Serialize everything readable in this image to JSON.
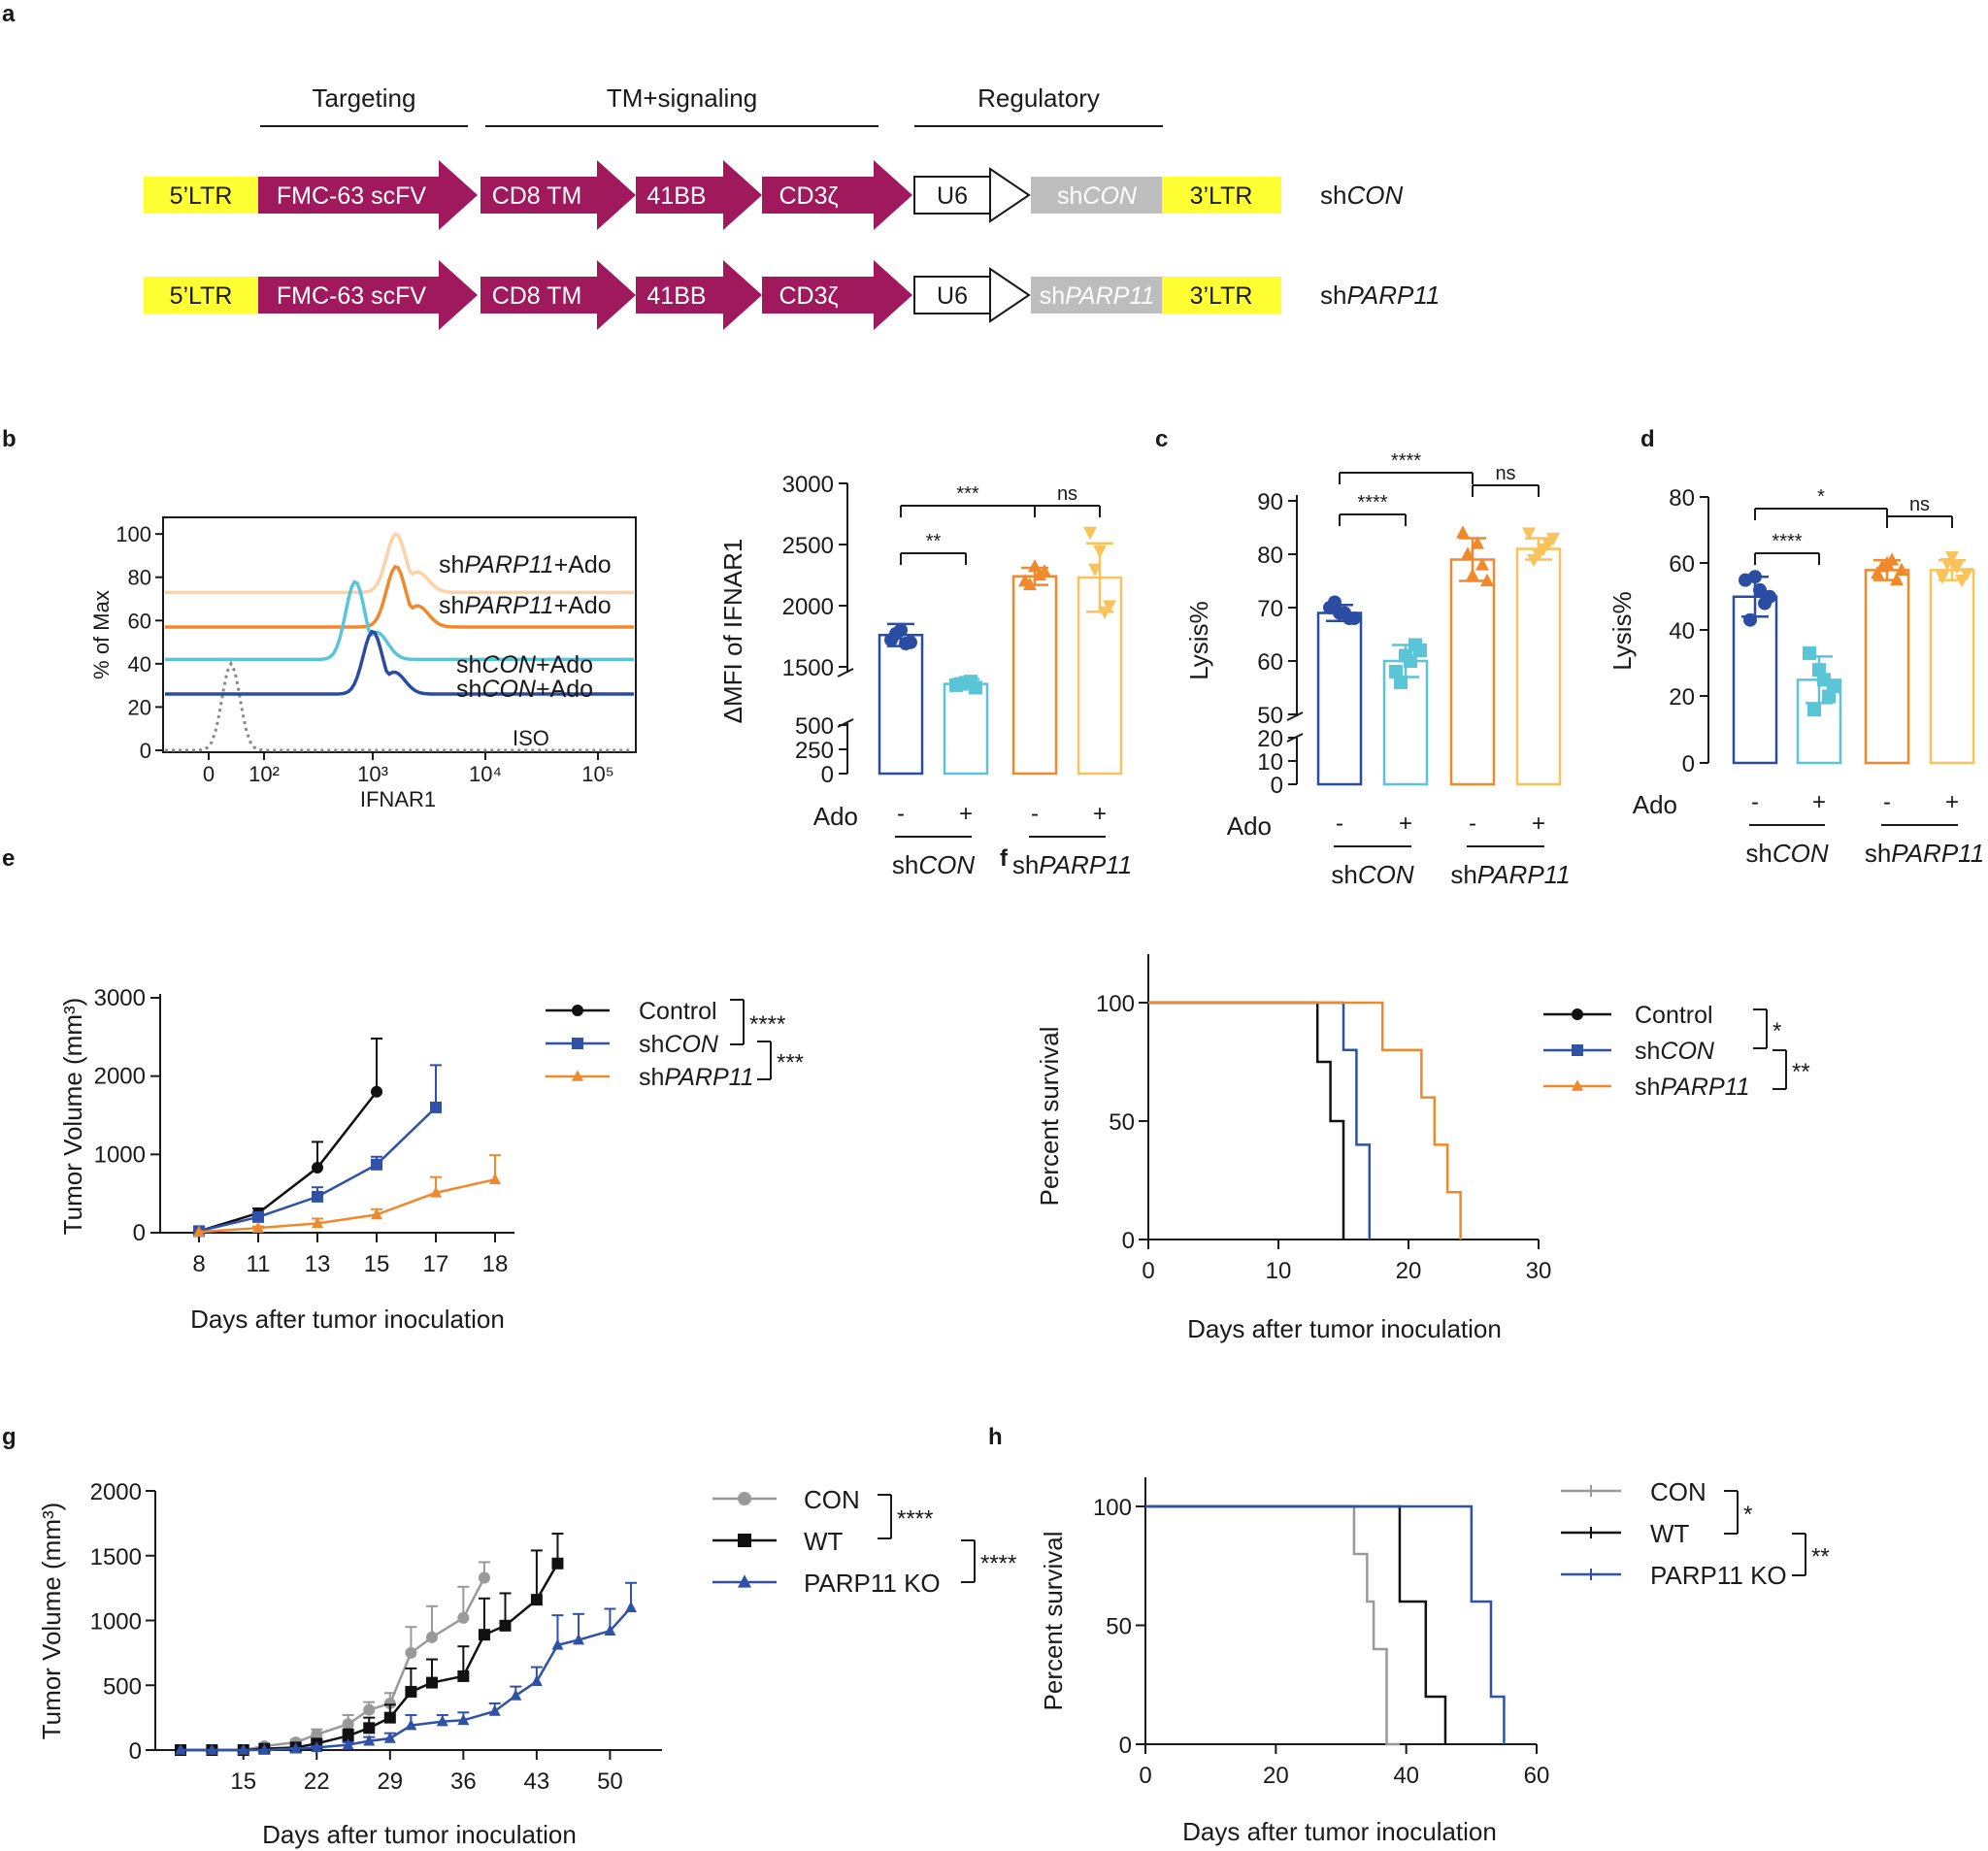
{
  "colors": {
    "magenta": "#a0195d",
    "yellow": "#ffff33",
    "gray": "#bdbdbd",
    "navy": "#2b4ca3",
    "cyan": "#5bc5d8",
    "orange": "#f0892c",
    "lightorange": "#f8c35a",
    "peach": "#fcd2a8",
    "black": "#111111",
    "gray2": "#999999",
    "blue": "#2f52a8"
  },
  "panels": {
    "a": "a",
    "b": "b",
    "c": "c",
    "d": "d",
    "e": "e",
    "f": "f",
    "g": "g",
    "h": "h"
  },
  "construct": {
    "headers": [
      "Targeting",
      "TM+signaling",
      "Regulatory"
    ],
    "rows": [
      {
        "ltr5": "5’LTR",
        "scfv": "FMC-63 scFV",
        "tm": "CD8 TM",
        "bb": "41BB",
        "cd3": "CD3ζ",
        "u6": "U6",
        "sh_pre": "sh",
        "sh_it": "CON",
        "ltr3": "3’LTR",
        "name_pre": "sh",
        "name_it": "CON"
      },
      {
        "ltr5": "5’LTR",
        "scfv": "FMC-63 scFV",
        "tm": "CD8 TM",
        "bb": "41BB",
        "cd3": "CD3ζ",
        "u6": "U6",
        "sh_pre": "sh",
        "sh_it": "PARP11",
        "ltr3": "3’LTR",
        "name_pre": "sh",
        "name_it": "PARP11"
      }
    ]
  },
  "chart_data": [
    {
      "id": "b_histogram",
      "type": "line",
      "ylabel": "% of Max",
      "xlabel": "IFNAR1",
      "yticks": [
        "0",
        "20",
        "40",
        "60",
        "80",
        "100"
      ],
      "xticks": [
        "0",
        "10²",
        "10³",
        "10⁴",
        "10⁵"
      ],
      "series": [
        {
          "name": "shPARP11+Ado",
          "pre": "sh",
          "it": "PARP11",
          "post": "+Ado",
          "color": "#fcd2a8",
          "baseline": 73,
          "peak_log": 3.1,
          "peak": 100
        },
        {
          "name": "shPARP11+Ado",
          "pre": "sh",
          "it": "PARP11",
          "post": "+Ado",
          "color": "#f0892c",
          "baseline": 57,
          "peak_log": 3.1,
          "peak": 85
        },
        {
          "name": "shCON+Ado",
          "pre": "sh",
          "it": "CON",
          "post": "+Ado",
          "color": "#5bc5d8",
          "baseline": 42,
          "peak_log": 2.85,
          "peak": 78
        },
        {
          "name": "shCON+Ado",
          "pre": "sh",
          "it": "CON",
          "post": "+Ado",
          "color": "#2b4ca3",
          "baseline": 26,
          "peak_log": 2.95,
          "peak": 55
        }
      ],
      "iso_label": "ISO"
    },
    {
      "id": "b_bar",
      "type": "bar",
      "ylabel": "ΔMFI of IFNAR1",
      "yticks_low": [
        "0",
        "250",
        "500"
      ],
      "yticks_high": [
        "1500",
        "2000",
        "2500",
        "3000"
      ],
      "ylim_low": [
        0,
        500
      ],
      "ylim_high": [
        1250,
        3000
      ],
      "categories": [
        "shCON -",
        "shCON +",
        "shPARP11 -",
        "shPARP11 +"
      ],
      "values": [
        1760,
        1360,
        2240,
        2230
      ],
      "errors": [
        90,
        40,
        70,
        280
      ],
      "points": [
        [
          1720,
          1800,
          1700,
          1770,
          1690
        ],
        [
          1350,
          1370,
          1330,
          1360,
          1380
        ],
        [
          2200,
          2320,
          2280,
          2170,
          2250
        ],
        [
          2600,
          2450,
          2000,
          2300,
          1950
        ]
      ],
      "colors": [
        "#2b4ca3",
        "#5bc5d8",
        "#f0892c",
        "#f8c35a"
      ],
      "sig": [
        "**",
        "***",
        "ns"
      ]
    },
    {
      "id": "c_bar",
      "type": "bar",
      "panel": "c",
      "ylabel": "Lysis%",
      "yticks_low": [
        "0",
        "10",
        "20"
      ],
      "yticks_high": [
        "50",
        "60",
        "70",
        "80",
        "90"
      ],
      "categories": [
        "shCON -",
        "shCON +",
        "shPARP11 -",
        "shPARP11 +"
      ],
      "values": [
        69,
        60,
        79,
        81
      ],
      "errors": [
        1.5,
        3,
        4,
        2
      ],
      "points": [
        [
          70,
          69,
          68,
          71,
          69,
          68
        ],
        [
          58,
          61,
          63,
          56,
          60,
          62
        ],
        [
          84,
          76,
          78,
          80,
          82,
          75
        ],
        [
          84,
          80,
          82,
          79,
          81,
          83
        ]
      ],
      "colors": [
        "#2b4ca3",
        "#5bc5d8",
        "#f0892c",
        "#f8c35a"
      ],
      "sig": [
        "****",
        "****",
        "ns"
      ]
    },
    {
      "id": "d_bar",
      "type": "bar",
      "panel": "d",
      "ylabel": "Lysis%",
      "yticks": [
        "0",
        "20",
        "40",
        "60",
        "80"
      ],
      "ylim": [
        0,
        80
      ],
      "categories": [
        "shCON -",
        "shCON +",
        "shPARP11 -",
        "shPARP11 +"
      ],
      "values": [
        50,
        25,
        58,
        58
      ],
      "errors": [
        6,
        7,
        3,
        3
      ],
      "points": [
        [
          55,
          56,
          48,
          43,
          52,
          50
        ],
        [
          33,
          28,
          20,
          16,
          25,
          23
        ],
        [
          57,
          60,
          55,
          59,
          61,
          58
        ],
        [
          56,
          62,
          55,
          60,
          59,
          57
        ]
      ],
      "colors": [
        "#2b4ca3",
        "#5bc5d8",
        "#f0892c",
        "#f8c35a"
      ],
      "sig": [
        "****",
        "*",
        "ns"
      ]
    },
    {
      "id": "e_growth",
      "type": "line",
      "panel": "e",
      "ylabel": "Tumor Volume (mm³)",
      "xlabel": "Days after tumor inoculation",
      "x_categories": [
        "8",
        "11",
        "13",
        "15",
        "17",
        "18"
      ],
      "ylim": [
        0,
        3000
      ],
      "yticks": [
        "0",
        "1000",
        "2000",
        "3000"
      ],
      "series": [
        {
          "name": "Control",
          "color": "#111111",
          "marker": "circle",
          "values": [
            20,
            250,
            830,
            1800
          ],
          "errors": [
            0,
            60,
            330,
            680
          ]
        },
        {
          "name": "shCON",
          "pre": "sh",
          "it": "CON",
          "color": "#2f52a8",
          "marker": "square",
          "values": [
            20,
            200,
            460,
            870,
            1600
          ],
          "errors": [
            0,
            40,
            120,
            100,
            540
          ]
        },
        {
          "name": "shPARP11",
          "pre": "sh",
          "it": "PARP11",
          "color": "#f0892c",
          "marker": "triangle",
          "values": [
            10,
            60,
            120,
            230,
            510,
            680
          ],
          "errors": [
            0,
            20,
            60,
            70,
            200,
            310
          ]
        }
      ],
      "sig": [
        "****",
        "***"
      ]
    },
    {
      "id": "f_survival",
      "type": "line",
      "panel": "f",
      "ylabel": "Percent survival",
      "xlabel": "Days after tumor inoculation",
      "xlim": [
        0,
        30
      ],
      "ylim": [
        0,
        100
      ],
      "xticks": [
        "0",
        "10",
        "20",
        "30"
      ],
      "yticks": [
        "0",
        "50",
        "100"
      ],
      "series": [
        {
          "name": "Control",
          "color": "#111111",
          "marker": "circle",
          "steps": [
            [
              0,
              100
            ],
            [
              13,
              100
            ],
            [
              13,
              75
            ],
            [
              14,
              75
            ],
            [
              14,
              50
            ],
            [
              15,
              50
            ],
            [
              15,
              0
            ]
          ]
        },
        {
          "name": "shCON",
          "pre": "sh",
          "it": "CON",
          "color": "#2f52a8",
          "marker": "square",
          "steps": [
            [
              0,
              100
            ],
            [
              15,
              100
            ],
            [
              15,
              80
            ],
            [
              16,
              80
            ],
            [
              16,
              40
            ],
            [
              17,
              40
            ],
            [
              17,
              0
            ]
          ]
        },
        {
          "name": "shPARP11",
          "pre": "sh",
          "it": "PARP11",
          "color": "#f0892c",
          "marker": "triangle",
          "steps": [
            [
              0,
              100
            ],
            [
              18,
              100
            ],
            [
              18,
              80
            ],
            [
              21,
              80
            ],
            [
              21,
              60
            ],
            [
              22,
              60
            ],
            [
              22,
              40
            ],
            [
              23,
              40
            ],
            [
              23,
              20
            ],
            [
              24,
              20
            ],
            [
              24,
              0
            ]
          ]
        }
      ],
      "sig": [
        "*",
        "**"
      ]
    },
    {
      "id": "g_growth",
      "type": "line",
      "panel": "g",
      "ylabel": "Tumor Volume (mm³)",
      "xlabel": "Days after tumor inoculation",
      "xlim": [
        6,
        54
      ],
      "ylim": [
        0,
        2000
      ],
      "xticks": [
        "15",
        "22",
        "29",
        "36",
        "43",
        "50"
      ],
      "yticks": [
        "0",
        "500",
        "1000",
        "1500",
        "2000"
      ],
      "series": [
        {
          "name": "CON",
          "color": "#999999",
          "marker": "circle",
          "x": [
            9,
            12,
            15,
            17,
            20,
            22,
            25,
            27,
            29,
            31,
            33,
            36,
            38
          ],
          "values": [
            0,
            0,
            0,
            30,
            60,
            120,
            200,
            310,
            360,
            750,
            870,
            1020,
            1330
          ],
          "errors": [
            0,
            0,
            0,
            10,
            20,
            40,
            70,
            60,
            80,
            200,
            240,
            240,
            120
          ]
        },
        {
          "name": "WT",
          "color": "#111111",
          "marker": "square",
          "x": [
            9,
            12,
            15,
            17,
            20,
            22,
            25,
            27,
            29,
            31,
            33,
            36,
            38,
            40,
            43,
            45
          ],
          "values": [
            0,
            0,
            0,
            10,
            20,
            50,
            110,
            170,
            250,
            450,
            520,
            570,
            890,
            960,
            1160,
            1440
          ],
          "errors": [
            0,
            0,
            0,
            5,
            10,
            30,
            50,
            80,
            100,
            180,
            180,
            230,
            280,
            250,
            380,
            230
          ]
        },
        {
          "name": "PARP11 KO",
          "color": "#2f52a8",
          "marker": "triangle",
          "x": [
            9,
            12,
            15,
            17,
            20,
            22,
            25,
            27,
            29,
            31,
            34,
            36,
            39,
            41,
            43,
            45,
            47,
            50,
            52
          ],
          "values": [
            0,
            0,
            0,
            0,
            10,
            20,
            40,
            70,
            90,
            190,
            220,
            230,
            300,
            420,
            530,
            810,
            850,
            920,
            1100
          ],
          "errors": [
            0,
            0,
            0,
            0,
            5,
            10,
            20,
            30,
            40,
            80,
            50,
            60,
            60,
            70,
            110,
            230,
            200,
            170,
            190
          ]
        }
      ],
      "sig": [
        "****",
        "****"
      ]
    },
    {
      "id": "h_survival",
      "type": "line",
      "panel": "h",
      "ylabel": "Percent survival",
      "xlabel": "Days after tumor inoculation",
      "xlim": [
        0,
        60
      ],
      "ylim": [
        0,
        100
      ],
      "xticks": [
        "0",
        "20",
        "40",
        "60"
      ],
      "yticks": [
        "0",
        "50",
        "100"
      ],
      "series": [
        {
          "name": "CON",
          "color": "#999999",
          "steps": [
            [
              0,
              100
            ],
            [
              32,
              100
            ],
            [
              32,
              80
            ],
            [
              34,
              80
            ],
            [
              34,
              60
            ],
            [
              35,
              60
            ],
            [
              35,
              40
            ],
            [
              37,
              40
            ],
            [
              37,
              0
            ],
            [
              39,
              0
            ]
          ]
        },
        {
          "name": "WT",
          "color": "#111111",
          "steps": [
            [
              0,
              100
            ],
            [
              39,
              100
            ],
            [
              39,
              60
            ],
            [
              43,
              60
            ],
            [
              43,
              20
            ],
            [
              46,
              20
            ],
            [
              46,
              0
            ]
          ]
        },
        {
          "name": "PARP11 KO",
          "color": "#2f52a8",
          "steps": [
            [
              0,
              100
            ],
            [
              50,
              100
            ],
            [
              50,
              60
            ],
            [
              53,
              60
            ],
            [
              53,
              20
            ],
            [
              55,
              20
            ],
            [
              55,
              0
            ]
          ]
        }
      ],
      "sig": [
        "*",
        "**"
      ]
    }
  ]
}
